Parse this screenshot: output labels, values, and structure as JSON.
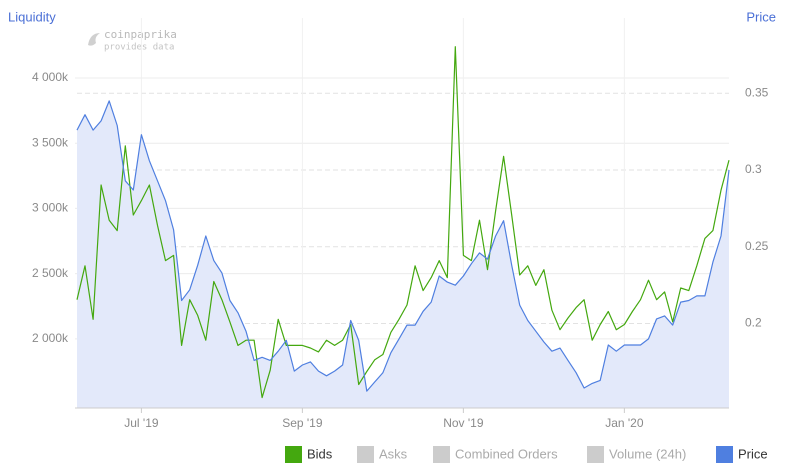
{
  "chart_data": {
    "type": "line",
    "y_axis_title": "Liquidity",
    "y2_axis_title": "Price",
    "watermark": [
      "coinpaprika",
      "provides data"
    ],
    "categories": [
      null,
      null,
      null,
      null,
      null,
      null,
      null,
      null,
      "Jul '19",
      null,
      null,
      null,
      null,
      null,
      null,
      null,
      null,
      null,
      null,
      null,
      null,
      null,
      null,
      null,
      null,
      null,
      null,
      null,
      "Sep '19",
      null,
      null,
      null,
      null,
      null,
      null,
      null,
      null,
      null,
      null,
      null,
      null,
      null,
      null,
      null,
      null,
      null,
      null,
      null,
      "Nov '19",
      null,
      null,
      null,
      null,
      null,
      null,
      null,
      null,
      null,
      null,
      null,
      null,
      null,
      null,
      null,
      null,
      null,
      null,
      null,
      "Jan '20",
      null,
      null,
      null,
      null,
      null,
      null,
      null,
      null,
      null,
      null,
      null,
      null,
      null
    ],
    "series": [
      {
        "name": "Bids",
        "color": "#44a80f",
        "axis": "y",
        "values": [
          2300000,
          2560000,
          2150000,
          3180000,
          2910000,
          2830000,
          3480000,
          2950000,
          3060000,
          3180000,
          2870000,
          2600000,
          2640000,
          1950000,
          2300000,
          2180000,
          1990000,
          2440000,
          2300000,
          2130000,
          1950000,
          1990000,
          1990000,
          1550000,
          1760000,
          2150000,
          1950000,
          1950000,
          1950000,
          1930000,
          1900000,
          1990000,
          1950000,
          1990000,
          2110000,
          1650000,
          1750000,
          1840000,
          1880000,
          2050000,
          2150000,
          2260000,
          2560000,
          2370000,
          2470000,
          2600000,
          2470000,
          4240000,
          2640000,
          2600000,
          2910000,
          2530000,
          2980000,
          3400000,
          2950000,
          2490000,
          2560000,
          2410000,
          2530000,
          2220000,
          2070000,
          2160000,
          2240000,
          2300000,
          1990000,
          2110000,
          2210000,
          2070000,
          2110000,
          2210000,
          2300000,
          2450000,
          2300000,
          2360000,
          2130000,
          2390000,
          2370000,
          2560000,
          2770000,
          2830000,
          3140000,
          3370000
        ]
      },
      {
        "name": "Price",
        "color": "#4f7fe0",
        "axis": "y2",
        "values": [
          0.326,
          0.336,
          0.326,
          0.332,
          0.345,
          0.329,
          0.293,
          0.287,
          0.323,
          0.306,
          0.293,
          0.28,
          0.261,
          0.215,
          0.222,
          0.238,
          0.257,
          0.241,
          0.233,
          0.215,
          0.207,
          0.195,
          0.176,
          0.178,
          0.176,
          0.182,
          0.189,
          0.169,
          0.173,
          0.175,
          0.169,
          0.166,
          0.169,
          0.173,
          0.202,
          0.189,
          0.156,
          0.162,
          0.168,
          0.181,
          0.19,
          0.199,
          0.199,
          0.208,
          0.214,
          0.231,
          0.227,
          0.225,
          0.231,
          0.239,
          0.246,
          0.242,
          0.257,
          0.267,
          0.238,
          0.212,
          0.202,
          0.195,
          0.188,
          0.182,
          0.184,
          0.176,
          0.168,
          0.158,
          0.161,
          0.163,
          0.186,
          0.182,
          0.186,
          0.186,
          0.186,
          0.19,
          0.203,
          0.205,
          0.199,
          0.214,
          0.215,
          0.218,
          0.218,
          0.24,
          0.257,
          0.3
        ]
      }
    ],
    "inactive_series": [
      {
        "name": "Asks",
        "color": "#cccccc"
      },
      {
        "name": "Combined Orders",
        "color": "#cccccc"
      },
      {
        "name": "Volume (24h)",
        "color": "#cccccc"
      }
    ],
    "area_color": "#e3e9fa",
    "ylim": [
      1470000,
      4460000
    ],
    "yticks": [
      {
        "value": 2000000,
        "label": "2 000k"
      },
      {
        "value": 2500000,
        "label": "2 500k"
      },
      {
        "value": 3000000,
        "label": "3 000k"
      },
      {
        "value": 3500000,
        "label": "3 500k"
      },
      {
        "value": 4000000,
        "label": "4 000k"
      }
    ],
    "y2lim": [
      0.145,
      0.399
    ],
    "y2ticks": [
      0.2,
      0.25,
      0.3,
      0.35
    ],
    "grid": true
  }
}
